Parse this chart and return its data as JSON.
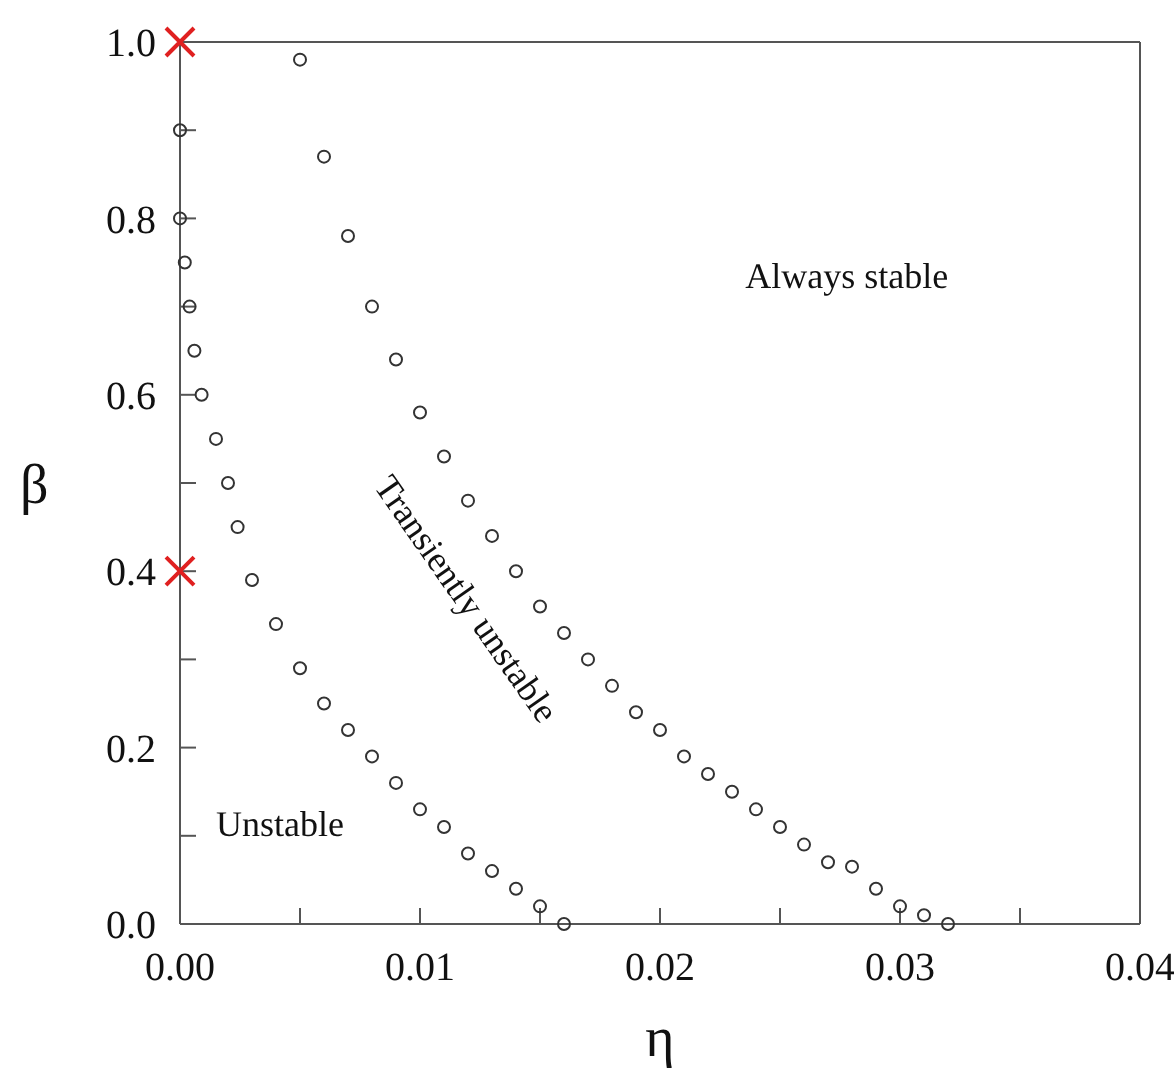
{
  "chart_data": {
    "type": "scatter",
    "xlabel": "η",
    "ylabel": "β",
    "xlim": [
      0,
      0.04
    ],
    "ylim": [
      0,
      1
    ],
    "xticks": [
      {
        "value": 0,
        "label": "0.00"
      },
      {
        "value": 0.005,
        "label": null
      },
      {
        "value": 0.01,
        "label": "0.01"
      },
      {
        "value": 0.015,
        "label": null
      },
      {
        "value": 0.02,
        "label": "0.02"
      },
      {
        "value": 0.025,
        "label": null
      },
      {
        "value": 0.03,
        "label": "0.03"
      },
      {
        "value": 0.035,
        "label": null
      },
      {
        "value": 0.04,
        "label": "0.04"
      }
    ],
    "yticks": [
      {
        "value": 0,
        "label": "0.0"
      },
      {
        "value": 0.1,
        "label": null
      },
      {
        "value": 0.2,
        "label": "0.2"
      },
      {
        "value": 0.3,
        "label": null
      },
      {
        "value": 0.4,
        "label": "0.4"
      },
      {
        "value": 0.5,
        "label": null
      },
      {
        "value": 0.6,
        "label": "0.6"
      },
      {
        "value": 0.7,
        "label": null
      },
      {
        "value": 0.8,
        "label": "0.8"
      },
      {
        "value": 0.9,
        "label": null
      },
      {
        "value": 1,
        "label": "1.0"
      }
    ],
    "grid": false,
    "legend": false,
    "marker": "circle",
    "annotations": [
      "Always stable",
      "Transiently unstable",
      "Unstable"
    ],
    "series": [
      {
        "color": "#333333",
        "x": [
          0,
          0,
          0.0002,
          0.0004,
          0.0006,
          0.0009,
          0.0015,
          0.002,
          0.0024,
          0.003,
          0.004,
          0.005,
          0.006,
          0.007,
          0.008,
          0.009,
          0.01,
          0.011,
          0.012,
          0.013,
          0.014,
          0.015,
          0.016
        ],
        "values": [
          0.9,
          0.8,
          0.75,
          0.7,
          0.65,
          0.6,
          0.55,
          0.5,
          0.45,
          0.39,
          0.34,
          0.29,
          0.25,
          0.22,
          0.19,
          0.16,
          0.13,
          0.11,
          0.08,
          0.06,
          0.04,
          0.02,
          0
        ]
      },
      {
        "color": "#333333",
        "x": [
          0.005,
          0.006,
          0.007,
          0.008,
          0.009,
          0.01,
          0.011,
          0.012,
          0.013,
          0.014,
          0.015,
          0.016,
          0.017,
          0.018,
          0.019,
          0.02,
          0.021,
          0.022,
          0.023,
          0.024,
          0.025,
          0.026,
          0.027,
          0.028,
          0.029,
          0.03,
          0.031,
          0.032
        ],
        "values": [
          0.98,
          0.87,
          0.78,
          0.7,
          0.64,
          0.58,
          0.53,
          0.48,
          0.44,
          0.4,
          0.36,
          0.33,
          0.3,
          0.27,
          0.24,
          0.22,
          0.19,
          0.17,
          0.15,
          0.13,
          0.11,
          0.09,
          0.07,
          0.065,
          0.04,
          0.02,
          0.01,
          0
        ]
      },
      {
        "color": "#e02020",
        "marker": "cross",
        "x": [
          0,
          0
        ],
        "values": [
          1,
          0.4
        ]
      }
    ]
  }
}
